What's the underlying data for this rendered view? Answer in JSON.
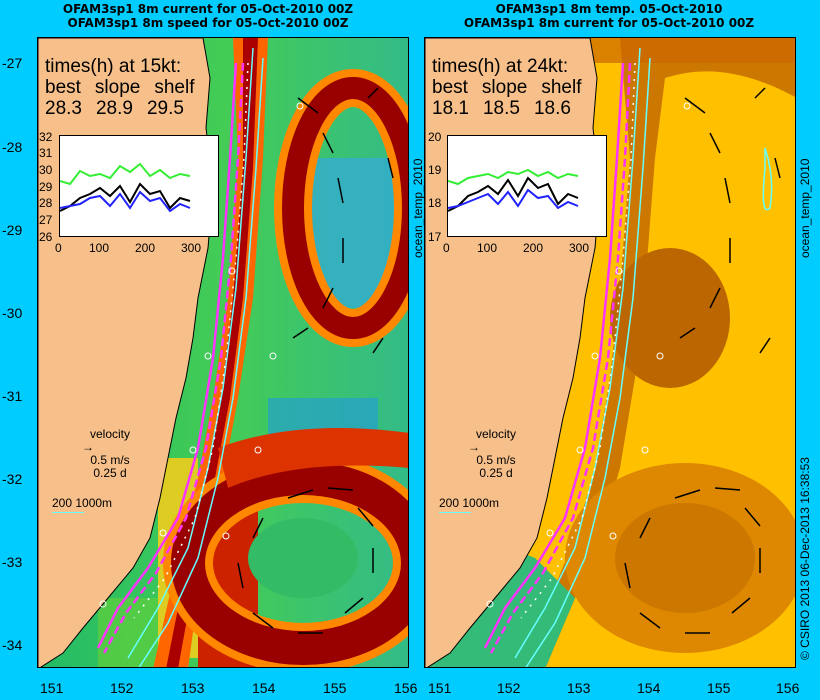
{
  "left_panel": {
    "title_line1": "OFAM3sp1 8m current for 05-Oct-2010 00Z",
    "title_line2": "OFAM3sp1 8m speed for 05-Oct-2010 00Z",
    "times_heading": "times(h) at 15kt:",
    "labels": [
      "best",
      "slope",
      "shelf"
    ],
    "values": [
      "28.3",
      "28.9",
      "29.5"
    ],
    "inset": {
      "y_ticks": [
        "32",
        "31",
        "30",
        "29",
        "28",
        "27",
        "26"
      ],
      "x_ticks": [
        "0",
        "100",
        "200",
        "300"
      ]
    },
    "velocity_label": "velocity",
    "velocity_speed": "0.5 m/s",
    "velocity_time": "0.25 d",
    "scale_label": "200  1000m"
  },
  "right_panel": {
    "title_line1": "OFAM3sp1 8m temp. 05-Oct-2010",
    "title_line2": "OFAM3sp1 8m current for 05-Oct-2010 00Z",
    "times_heading": "times(h) at 24kt:",
    "labels": [
      "best",
      "slope",
      "shelf"
    ],
    "values": [
      "18.1",
      "18.5",
      "18.6"
    ],
    "inset": {
      "y_ticks": [
        "20",
        "19",
        "18",
        "17"
      ],
      "x_ticks": [
        "0",
        "100",
        "200",
        "300"
      ]
    },
    "velocity_label": "velocity",
    "velocity_speed": "0.5 m/s",
    "velocity_time": "0.25 d",
    "scale_label": "200  1000m"
  },
  "axes": {
    "latitudes": [
      "-27",
      "-28",
      "-29",
      "-30",
      "-31",
      "-32",
      "-33",
      "-34"
    ],
    "longitudes": [
      "151",
      "152",
      "153",
      "154",
      "155",
      "156"
    ]
  },
  "side_labels": {
    "left": "ocean_temp_2010",
    "right": "ocean_temp_2010",
    "credit": "© CSIRO 2013   06-Dec-2013 16:38:53"
  },
  "colors": {
    "background": "#00ccff",
    "land": "#f7c08a",
    "route": "#ff33ff",
    "isobath": "#66ffff"
  }
}
